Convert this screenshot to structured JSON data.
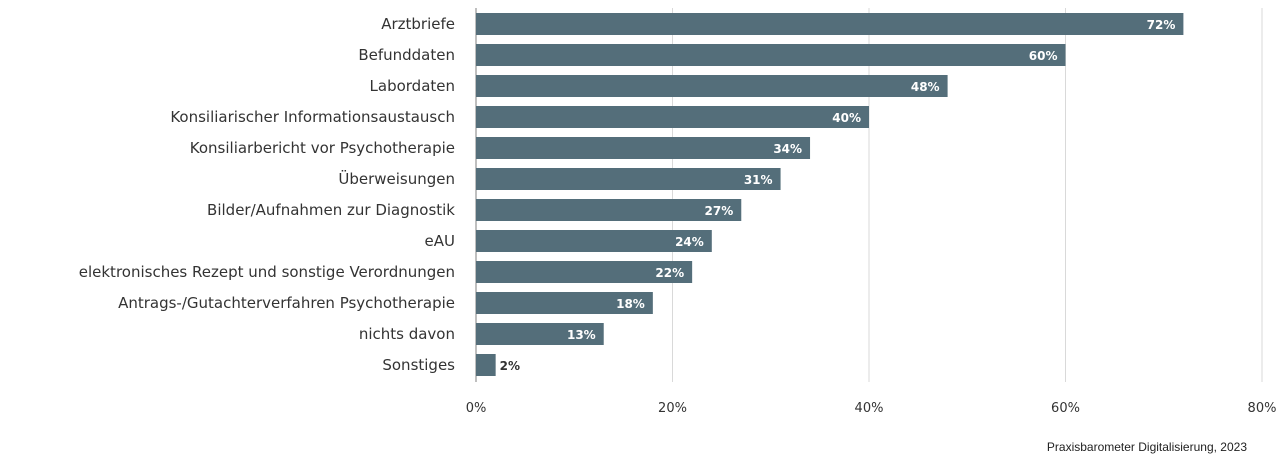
{
  "chart_data": {
    "type": "bar",
    "orientation": "horizontal",
    "categories": [
      "Arztbriefe",
      "Befunddaten",
      "Labordaten",
      "Konsiliarischer Informationsaustausch",
      "Konsiliarbericht vor  Psychotherapie",
      "Überweisungen",
      "Bilder/Aufnahmen zur Diagnostik",
      "eAU",
      "elektronisches Rezept und sonstige Verordnungen",
      "Antrags-/Gutachterverfahren Psychotherapie",
      "nichts davon",
      "Sonstiges"
    ],
    "values": [
      72,
      60,
      48,
      40,
      34,
      31,
      27,
      24,
      22,
      18,
      13,
      2
    ],
    "value_labels": [
      "72%",
      "60%",
      "48%",
      "40%",
      "34%",
      "31%",
      "27%",
      "24%",
      "22%",
      "18%",
      "13%",
      "2%"
    ],
    "xlim": [
      0,
      80
    ],
    "xticks": [
      0,
      20,
      40,
      60,
      80
    ],
    "xtick_labels": [
      "0%",
      "20%",
      "40%",
      "60%",
      "80%"
    ],
    "grid": true,
    "bar_color": "#546e7a",
    "value_label_color_inside": "#ffffff",
    "value_label_color_outside": "#333333",
    "title": "",
    "xlabel": "",
    "ylabel": ""
  },
  "source": "Praxisbarometer Digitalisierung, 2023"
}
